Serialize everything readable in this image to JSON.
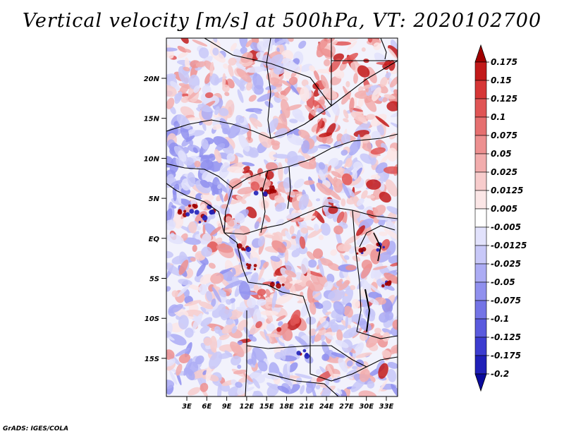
{
  "title": "Vertical velocity [m/s] at 500hPa, VT: 2020102700",
  "credit": "GrADS: IGES/COLA",
  "map": {
    "lat_labels": [
      "20N",
      "15N",
      "10N",
      "5N",
      "EQ",
      "5S",
      "10S",
      "15S"
    ],
    "lon_labels": [
      "3E",
      "6E",
      "9E",
      "12E",
      "15E",
      "18E",
      "21E",
      "24E",
      "27E",
      "30E",
      "33E"
    ]
  },
  "colorbar": {
    "levels": [
      "0.175",
      "0.15",
      "0.125",
      "0.1",
      "0.075",
      "0.05",
      "0.025",
      "0.0125",
      "0.005",
      "-0.005",
      "-0.0125",
      "-0.025",
      "-0.05",
      "-0.075",
      "-0.1",
      "-0.125",
      "-0.175",
      "-0.2"
    ],
    "colors": [
      "#a00000",
      "#c21a1a",
      "#d63636",
      "#e05555",
      "#e67070",
      "#ed9090",
      "#f2adad",
      "#f7cccc",
      "#fbe6e6",
      "#ffffff",
      "#e2e2fc",
      "#c8c8f8",
      "#acacf4",
      "#9090ee",
      "#7474e6",
      "#5a5ade",
      "#3c3cd0",
      "#2020b8",
      "#0a0a9c"
    ]
  },
  "field_palette": {
    "neutral": "#f2f2fc",
    "up": [
      "#fbe6e6",
      "#f7cccc",
      "#f2adad",
      "#ed9090",
      "#e05555",
      "#c21a1a"
    ],
    "down": [
      "#e2e2fc",
      "#c8c8f8",
      "#acacf4",
      "#9090ee"
    ]
  }
}
